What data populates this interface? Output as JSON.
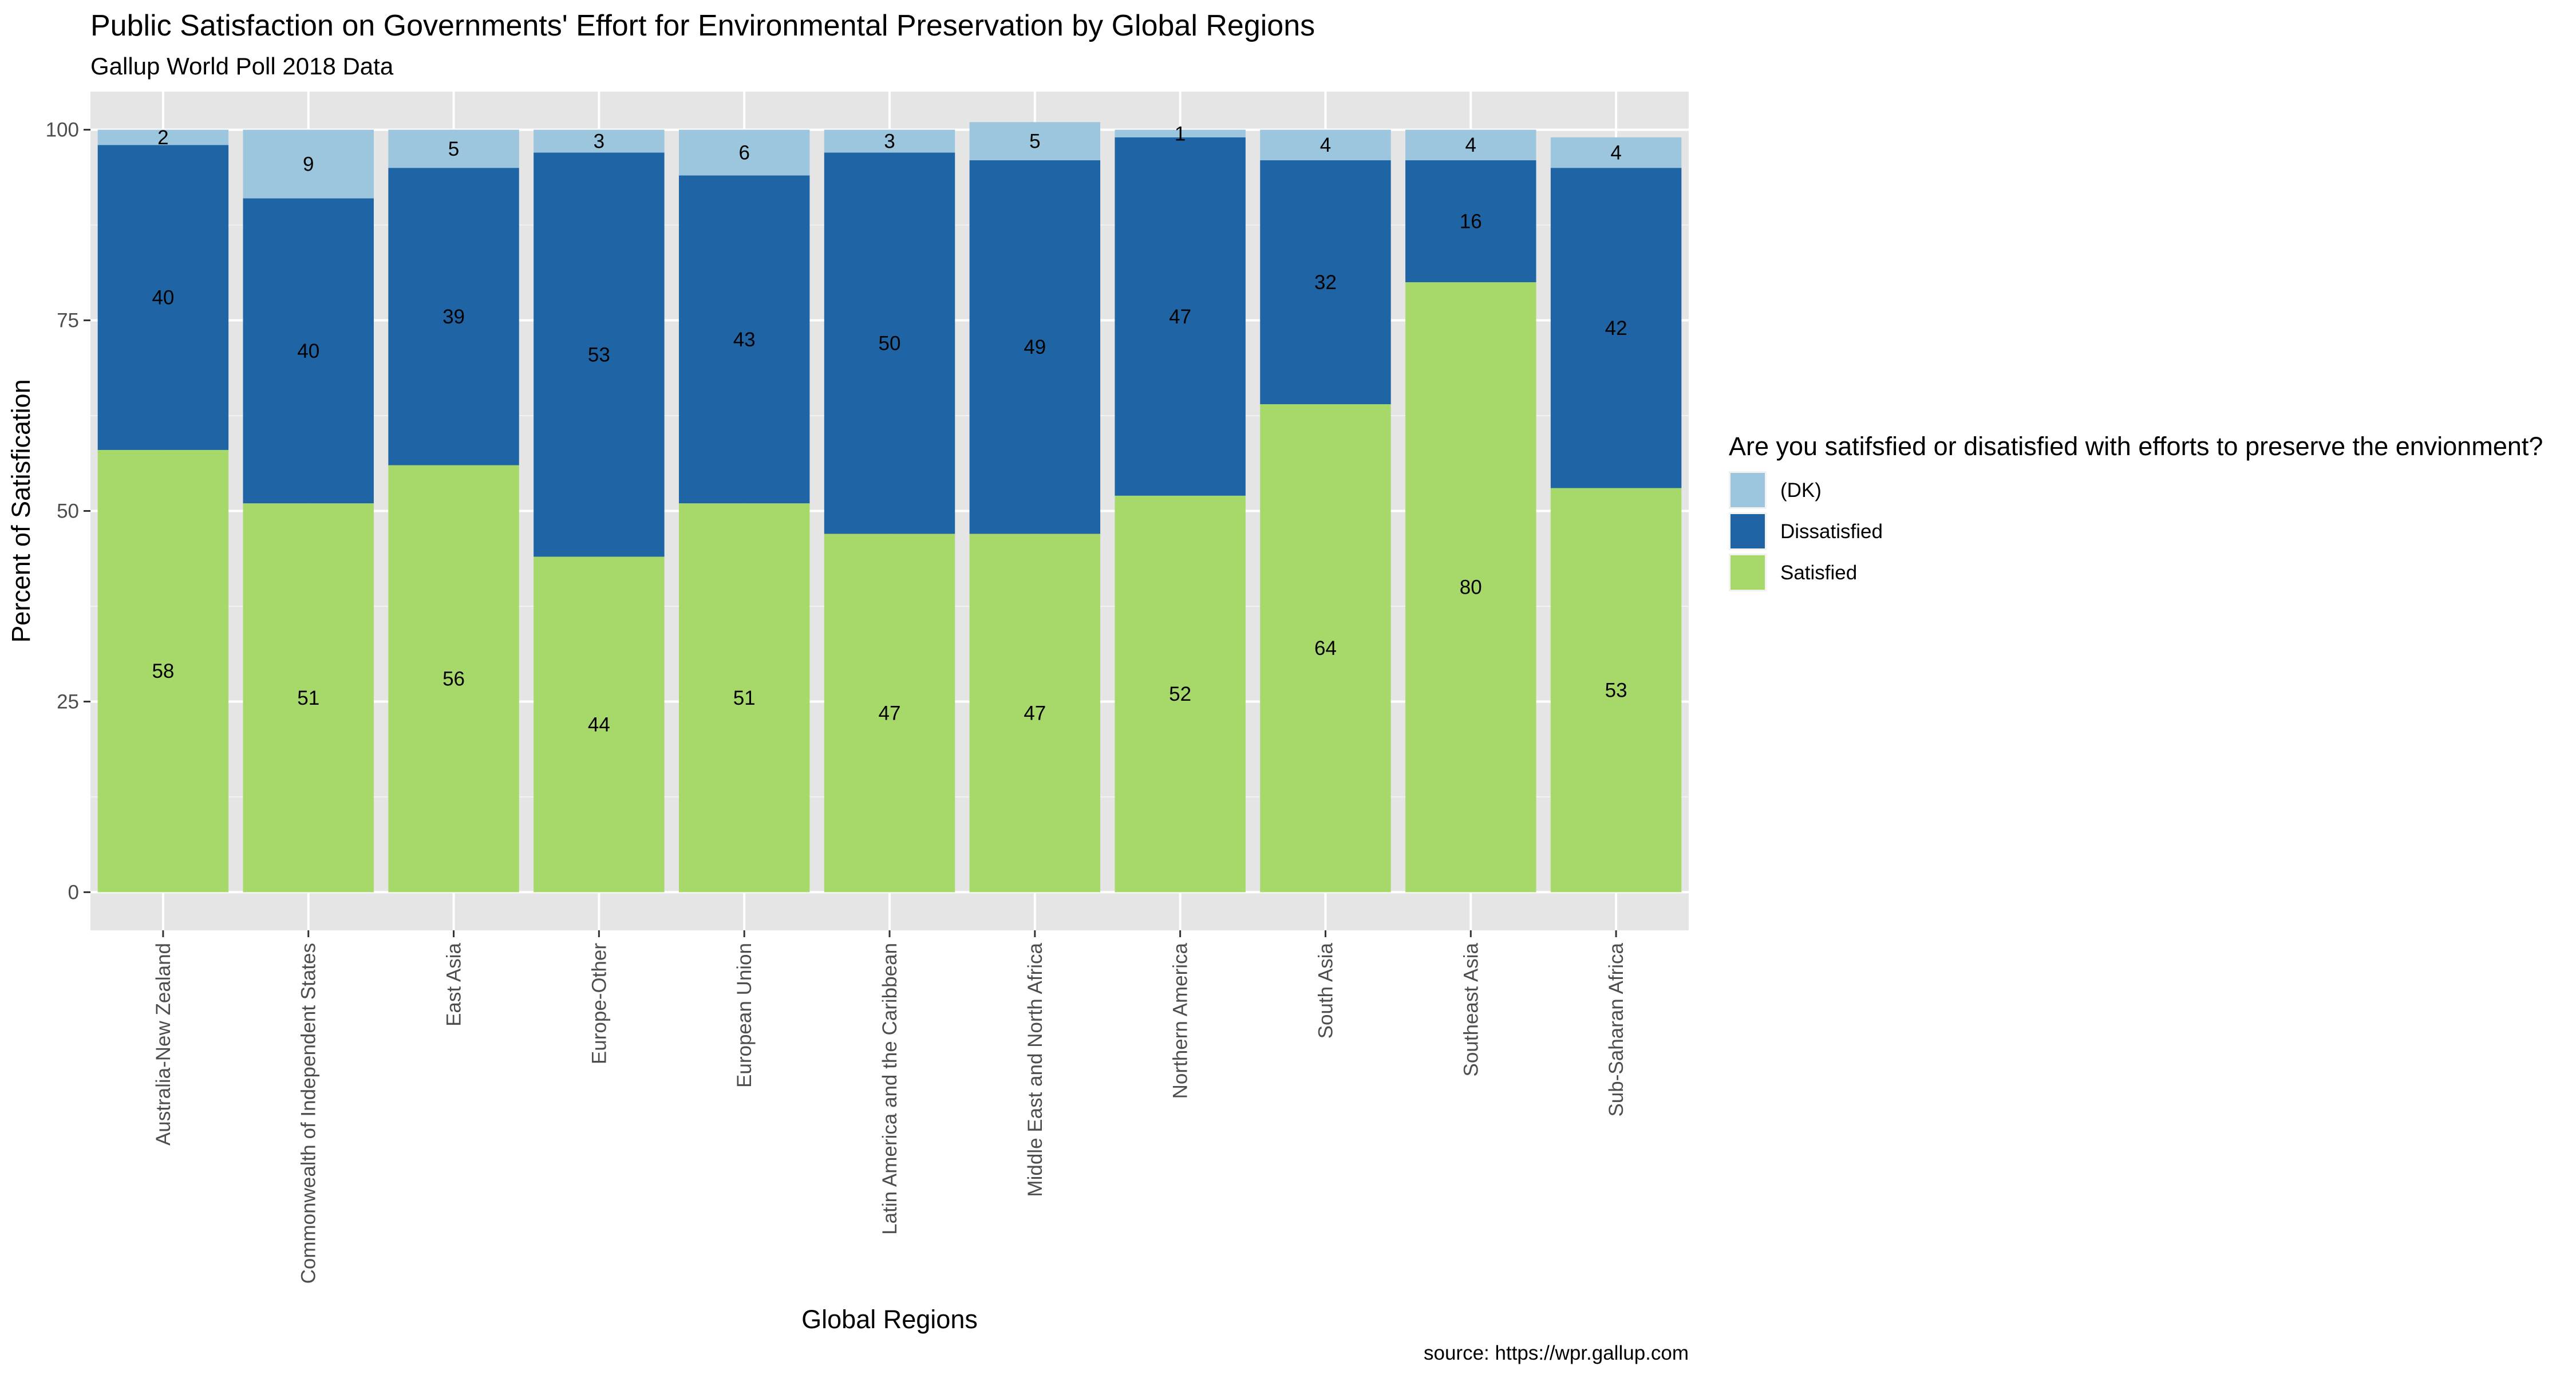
{
  "chart_data": {
    "type": "bar",
    "stacked": true,
    "title": "Public Satisfaction on Governments' Effort for Environmental Preservation by Global Regions",
    "subtitle": "Gallup World Poll 2018 Data",
    "xlabel": "Global Regions",
    "ylabel": "Percent of Satisfication",
    "caption": "source: https://wpr.gallup.com",
    "ylim": [
      -5,
      105
    ],
    "yticks": [
      0,
      25,
      50,
      75,
      100
    ],
    "grid": true,
    "legend": {
      "title": "Are you satifsfied or disatisfied with efforts to preserve the envionment?",
      "placement": "right"
    },
    "categories": [
      "Australia-New Zealand",
      "Commonwealth of Independent States",
      "East Asia",
      "Europe-Other",
      "European Union",
      "Latin America and the Caribbean",
      "Middle East and North Africa",
      "Northern America",
      "South Asia",
      "Southeast Asia",
      "Sub-Saharan Africa"
    ],
    "series": [
      {
        "name": "Satisfied",
        "color": "#a6d96a",
        "values": [
          58,
          51,
          56,
          44,
          51,
          47,
          47,
          52,
          64,
          80,
          53
        ]
      },
      {
        "name": "Dissatisfied",
        "color": "#1f65a6",
        "values": [
          40,
          40,
          39,
          53,
          43,
          50,
          49,
          47,
          32,
          16,
          42
        ]
      },
      {
        "name": "(DK)",
        "color": "#9cc5de",
        "values": [
          2,
          9,
          5,
          3,
          6,
          3,
          5,
          1,
          4,
          4,
          4
        ]
      }
    ],
    "legend_order": [
      "(DK)",
      "Dissatisfied",
      "Satisfied"
    ]
  }
}
